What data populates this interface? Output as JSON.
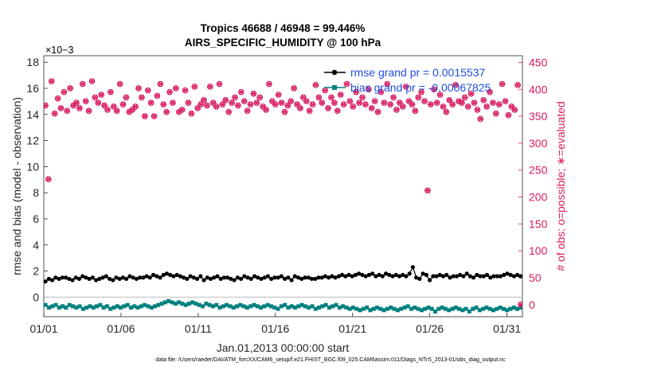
{
  "chart_data": {
    "type": "scatter",
    "title_line1": "Tropics 46688 / 46948 = 99.446%",
    "title_line2": "AIRS_SPECIFIC_HUMIDITY @ 100 hPa",
    "xlabel": "Jan.01,2013 00:00:00 start",
    "ylabel_left": "rmse and bias (model - observation)",
    "ylabel_right": "# of obs: o=possible; ∗=evaluated",
    "y_exponent": "×10−3",
    "x_ticks": [
      "01/01",
      "01/06",
      "01/11",
      "01/16",
      "01/21",
      "01/26",
      "01/31"
    ],
    "x_tick_days": [
      1,
      6,
      11,
      16,
      21,
      26,
      31
    ],
    "xlim": [
      1,
      32
    ],
    "ylim_left": [
      -1.5,
      18.5
    ],
    "ylim_right": [
      -22.5,
      462.5
    ],
    "y_ticks_left": [
      "0",
      "2",
      "4",
      "6",
      "8",
      "10",
      "12",
      "14",
      "16",
      "18"
    ],
    "y_ticks_left_values": [
      0,
      2,
      4,
      6,
      8,
      10,
      12,
      14,
      16,
      18
    ],
    "y_ticks_right": [
      "0",
      "50",
      "100",
      "150",
      "200",
      "250",
      "300",
      "350",
      "400",
      "450"
    ],
    "y_ticks_right_values": [
      0,
      50,
      100,
      150,
      200,
      250,
      300,
      350,
      400,
      450
    ],
    "legend": [
      {
        "label": "rmse grand pr = 0.0015537",
        "color": "#000000"
      },
      {
        "label": "bias grand pr = -0.00067825",
        "color": "#008080"
      }
    ],
    "colors": {
      "rmse": "#000000",
      "bias": "#008080",
      "obs": "#d81b60"
    },
    "series": [
      {
        "name": "rmse (x1e-3)",
        "values": [
          1.2,
          1.4,
          1.3,
          1.5,
          1.4,
          1.5,
          1.5,
          1.4,
          1.3,
          1.5,
          1.4,
          1.6,
          1.5,
          1.4,
          1.5,
          1.3,
          1.4,
          1.5,
          1.6,
          1.4,
          1.3,
          1.5,
          1.4,
          1.5,
          1.4,
          1.6,
          1.5,
          1.4,
          1.5,
          1.5,
          1.6,
          1.5,
          1.7,
          1.6,
          1.5,
          1.7,
          1.8,
          1.7,
          1.6,
          1.7,
          1.6,
          1.5,
          1.4,
          1.6,
          1.5,
          1.4,
          1.6,
          1.3,
          1.5,
          1.4,
          1.5,
          1.6,
          1.4,
          1.5,
          1.5,
          1.4,
          1.3,
          1.5,
          1.4,
          1.6,
          1.5,
          1.4,
          1.6,
          1.5,
          1.4,
          1.5,
          1.6,
          1.4,
          1.5,
          1.5,
          1.6,
          1.4,
          1.5,
          1.3,
          1.6,
          1.5,
          1.4,
          1.5,
          1.5,
          1.4,
          1.4,
          1.5,
          1.5,
          1.6,
          1.5,
          1.6,
          1.5,
          1.6,
          1.7,
          1.6,
          1.7,
          1.6,
          1.7,
          1.8,
          1.7,
          1.6,
          1.7,
          1.8,
          1.6,
          1.7,
          1.6,
          1.8,
          1.7,
          1.6,
          1.7,
          1.6,
          1.7,
          1.6,
          1.8,
          2.3,
          1.5,
          1.4,
          1.8,
          1.7,
          1.3,
          1.6,
          1.6,
          1.7,
          1.6,
          1.7,
          1.5,
          1.6,
          1.6,
          1.7,
          1.6,
          1.8,
          1.6,
          1.5,
          1.7,
          1.6,
          1.6,
          1.7,
          1.5,
          1.6,
          1.6,
          1.6,
          1.7,
          1.8,
          1.7,
          1.6,
          1.7,
          1.6
        ]
      },
      {
        "name": "bias (x1e-3)",
        "values": [
          -0.6,
          -0.8,
          -0.7,
          -0.6,
          -0.8,
          -0.7,
          -0.8,
          -0.6,
          -0.7,
          -0.8,
          -0.7,
          -0.9,
          -0.8,
          -0.7,
          -0.8,
          -0.7,
          -0.6,
          -0.8,
          -0.7,
          -0.9,
          -0.8,
          -0.7,
          -0.8,
          -0.7,
          -0.6,
          -0.8,
          -0.7,
          -0.8,
          -0.7,
          -0.6,
          -0.7,
          -0.8,
          -0.7,
          -0.6,
          -0.5,
          -0.4,
          -0.3,
          -0.4,
          -0.5,
          -0.4,
          -0.5,
          -0.6,
          -0.5,
          -0.4,
          -0.5,
          -0.6,
          -0.7,
          -0.5,
          -0.6,
          -0.7,
          -0.6,
          -0.8,
          -0.7,
          -0.6,
          -0.7,
          -0.8,
          -0.7,
          -0.6,
          -0.7,
          -0.8,
          -0.7,
          -0.6,
          -0.7,
          -0.8,
          -0.7,
          -0.6,
          -0.7,
          -0.8,
          -0.9,
          -0.7,
          -0.6,
          -0.8,
          -0.7,
          -0.8,
          -0.7,
          -0.6,
          -0.7,
          -0.8,
          -0.7,
          -0.9,
          -0.8,
          -0.7,
          -0.6,
          -0.8,
          -0.7,
          -0.6,
          -0.8,
          -0.7,
          -0.8,
          -0.9,
          -0.8,
          -0.9,
          -1.0,
          -0.9,
          -0.8,
          -1.0,
          -0.9,
          -0.8,
          -0.9,
          -1.0,
          -0.9,
          -0.8,
          -0.9,
          -1.0,
          -0.9,
          -0.8,
          -0.7,
          -0.9,
          -0.8,
          -0.9,
          -1.0,
          -0.9,
          -0.8,
          -0.9,
          -1.1,
          -0.9,
          -0.8,
          -0.9,
          -1.0,
          -0.9,
          -0.8,
          -0.9,
          -1.0,
          -0.9,
          -1.1,
          -0.9,
          -0.8,
          -1.0,
          -0.9,
          -0.8,
          -0.9,
          -1.0,
          -0.9,
          -0.8,
          -0.9,
          -1.0,
          -0.9,
          -0.8,
          -0.9,
          -0.8
        ]
      },
      {
        "name": "# of obs (evaluated)",
        "values": [
          370,
          233,
          415,
          355,
          383,
          365,
          395,
          360,
          402,
          370,
          375,
          365,
          410,
          378,
          360,
          415,
          385,
          375,
          390,
          370,
          362,
          395,
          368,
          360,
          410,
          372,
          385,
          358,
          362,
          368,
          402,
          385,
          350,
          398,
          375,
          350,
          388,
          410,
          372,
          358,
          395,
          375,
          402,
          358,
          362,
          398,
          375,
          355,
          405,
          365,
          372,
          380,
          370,
          405,
          375,
          368,
          410,
          372,
          380,
          358,
          375,
          385,
          370,
          395,
          378,
          360,
          372,
          392,
          375,
          385,
          368,
          362,
          410,
          378,
          372,
          390,
          375,
          358,
          370,
          378,
          402,
          372,
          365,
          385,
          378,
          360,
          372,
          408,
          385,
          375,
          398,
          365,
          385,
          375,
          360,
          390,
          372,
          410,
          378,
          368,
          395,
          375,
          385,
          372,
          400,
          365,
          378,
          358,
          395,
          375,
          410,
          372,
          385,
          362,
          375,
          368,
          405,
          378,
          372,
          360,
          385,
          395,
          378,
          212,
          372,
          400,
          375,
          390,
          368,
          358,
          380,
          372,
          408,
          378,
          375,
          385,
          368,
          392,
          375,
          362,
          345,
          380,
          368,
          395,
          375,
          355,
          372,
          410,
          378,
          352,
          368,
          362,
          408,
          0
        ]
      }
    ]
  }
}
